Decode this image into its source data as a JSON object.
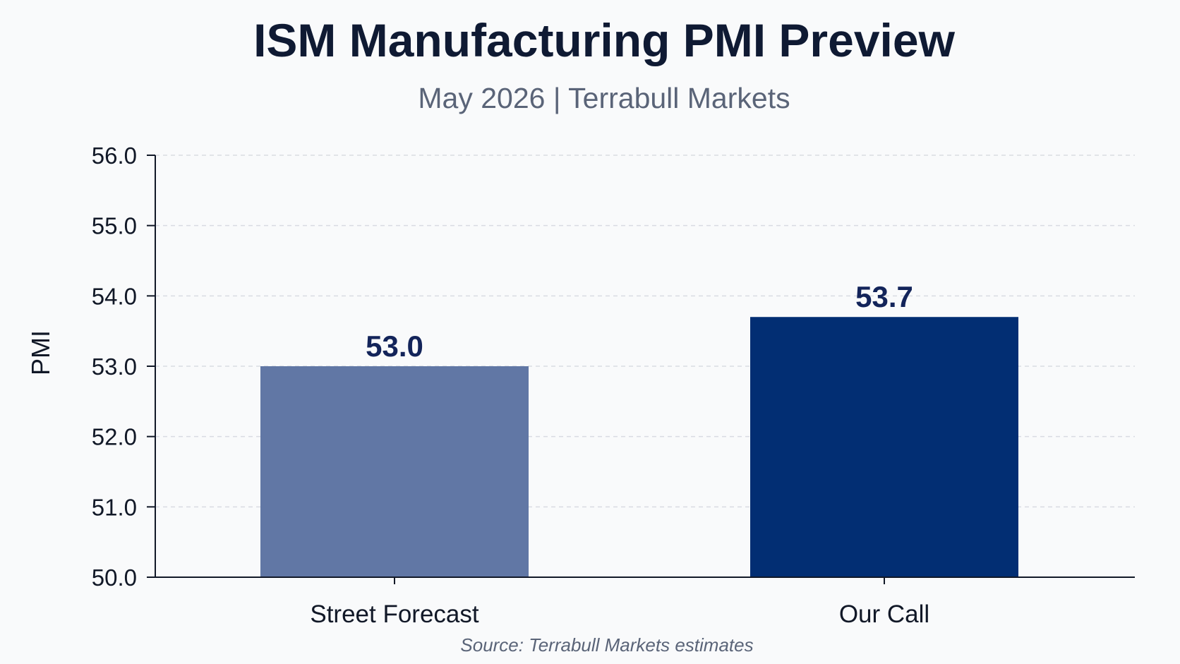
{
  "chart_data": {
    "type": "bar",
    "title": "ISM Manufacturing PMI Preview",
    "subtitle": "May 2026 | Terrabull Markets",
    "xlabel": "",
    "ylabel": "PMI",
    "categories": [
      "Street Forecast",
      "Our Call"
    ],
    "values": [
      53.0,
      53.7
    ],
    "data_labels": [
      "53.0",
      "53.7"
    ],
    "bar_colors": [
      "#6177a5",
      "#022e73"
    ],
    "ylim": [
      50.0,
      56.0
    ],
    "yticks": [
      "50.0",
      "51.0",
      "52.0",
      "53.0",
      "54.0",
      "55.0",
      "56.0"
    ],
    "grid": true,
    "legend": "none",
    "source": "Source: Terrabull Markets estimates"
  }
}
